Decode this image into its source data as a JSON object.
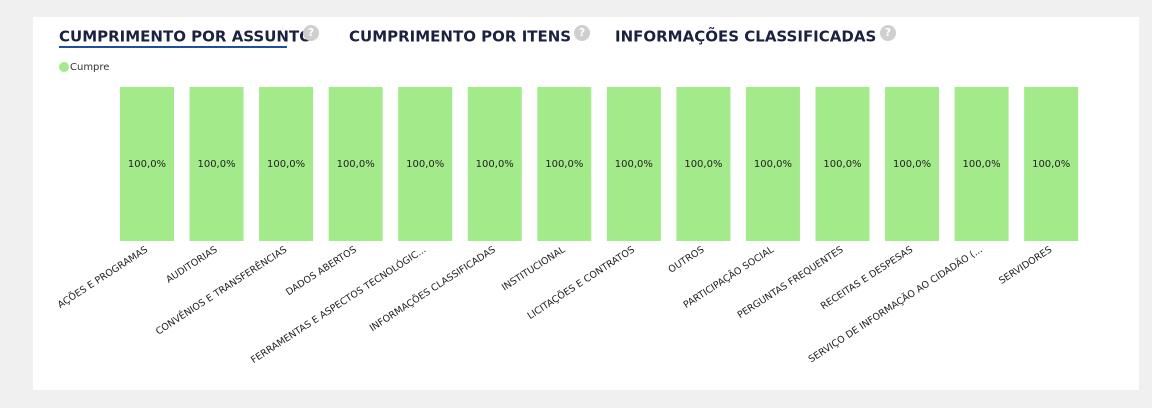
{
  "tabs": [
    {
      "label": "CUMPRIMENTO POR ASSUNTO",
      "active": true
    },
    {
      "label": "CUMPRIMENTO POR ITENS",
      "active": false
    },
    {
      "label": "INFORMAÇÕES CLASSIFICADAS",
      "active": false
    }
  ],
  "help_icon": "?",
  "chart_data": {
    "type": "bar",
    "categories": [
      "AÇÕES E PROGRAMAS",
      "AUDITORIAS",
      "CONVÊNIOS E TRANSFERÊNCIAS",
      "DADOS ABERTOS",
      "FERRAMENTAS E ASPECTOS TECNOLÓGIC...",
      "INFORMAÇÕES CLASSIFICADAS",
      "INSTITUCIONAL",
      "LICITAÇÕES E CONTRATOS",
      "OUTROS",
      "PARTICIPAÇÃO SOCIAL",
      "PERGUNTAS FREQUENTES",
      "RECEITAS E DESPESAS",
      "SERVIÇO DE INFORMAÇÃO AO CIDADÃO (...",
      "SERVIDORES"
    ],
    "series": [
      {
        "name": "Cumpre",
        "color": "#a3ea8b",
        "values": [
          100,
          100,
          100,
          100,
          100,
          100,
          100,
          100,
          100,
          100,
          100,
          100,
          100,
          100
        ],
        "value_labels": [
          "100,0%",
          "100,0%",
          "100,0%",
          "100,0%",
          "100,0%",
          "100,0%",
          "100,0%",
          "100,0%",
          "100,0%",
          "100,0%",
          "100,0%",
          "100,0%",
          "100,0%",
          "100,0%"
        ]
      }
    ],
    "ylim": [
      0,
      100
    ]
  }
}
